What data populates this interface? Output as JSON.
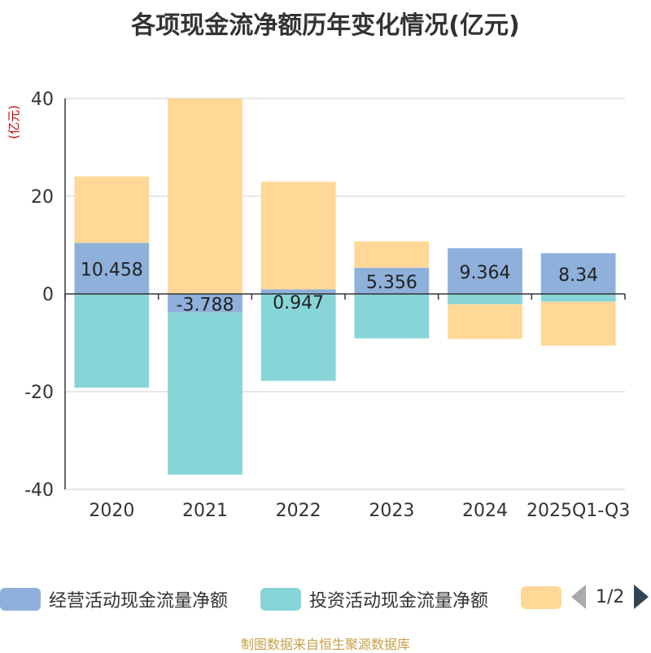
{
  "title": "各项现金流净额历年变化情况(亿元)",
  "chart_data": {
    "type": "bar",
    "stacked": true,
    "title": "各项现金流净额历年变化情况(亿元)",
    "ylabel": "(亿元)",
    "ylim": [
      -40,
      40
    ],
    "yticks": [
      40,
      20,
      0,
      -20,
      -40
    ],
    "categories": [
      "2020",
      "2021",
      "2022",
      "2023",
      "2024",
      "2025Q1-Q3"
    ],
    "series": [
      {
        "name": "经营活动现金流量净额",
        "color": "#8eb0db",
        "values": [
          10.458,
          -3.788,
          0.947,
          5.356,
          9.364,
          8.34
        ],
        "labels": [
          "10.458",
          "-3.788",
          "0.947",
          "5.356",
          "9.364",
          "8.34"
        ]
      },
      {
        "name": "投资活动现金流量净额",
        "color": "#88d5d8",
        "values": [
          -19.2,
          -33.2,
          -17.8,
          -9.1,
          -2.1,
          -1.6
        ]
      },
      {
        "name": "",
        "color": "#ffd897",
        "values": [
          13.6,
          40.0,
          22.0,
          5.4,
          -7.1,
          -9.0
        ]
      }
    ]
  },
  "legend": {
    "items": [
      {
        "label": "经营活动现金流量净额",
        "color": "#8eb0db"
      },
      {
        "label": "投资活动现金流量净额",
        "color": "#88d5d8"
      },
      {
        "label": "",
        "color": "#ffd897"
      }
    ],
    "page": "1/2"
  },
  "source": "制图数据来自恒生聚源数据库"
}
